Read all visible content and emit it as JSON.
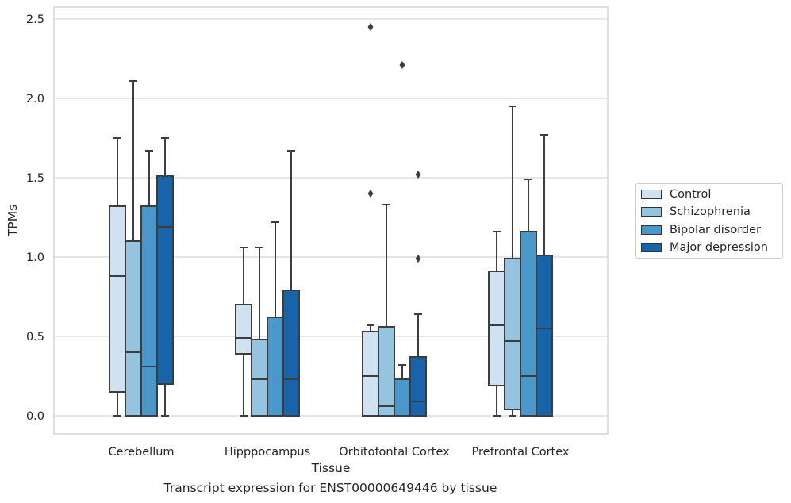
{
  "caption": "Transcript expression for ENST00000649446 by tissue",
  "legend": {
    "items": [
      {
        "label": "Control",
        "color": "#d0e1f2"
      },
      {
        "label": "Schizophrenia",
        "color": "#94c4df"
      },
      {
        "label": "Bipolar disorder",
        "color": "#4a98c9"
      },
      {
        "label": "Major depression",
        "color": "#1764ab"
      }
    ]
  },
  "chart_data": {
    "type": "box",
    "xlabel": "Tissue",
    "ylabel": "TPMs",
    "ylim": [
      -0.12,
      2.58
    ],
    "yticks": [
      0.0,
      0.5,
      1.0,
      1.5,
      2.0,
      2.5
    ],
    "ytick_labels": [
      "0.0",
      "0.5",
      "1.0",
      "1.5",
      "2.0",
      "2.5"
    ],
    "grid": true,
    "legend_position": "right",
    "categories": [
      "Cerebellum",
      "Hipppocampus",
      "Orbitofontal Cortex",
      "Prefrontal Cortex"
    ],
    "series": [
      {
        "name": "Control",
        "boxes": [
          {
            "whislo": 0.0,
            "q1": 0.15,
            "med": 0.88,
            "q3": 1.32,
            "whishi": 1.75,
            "fliers": []
          },
          {
            "whislo": 0.0,
            "q1": 0.39,
            "med": 0.49,
            "q3": 0.7,
            "whishi": 1.06,
            "fliers": []
          },
          {
            "whislo": 0.0,
            "q1": 0.0,
            "med": 0.25,
            "q3": 0.53,
            "whishi": 0.57,
            "fliers": [
              1.4,
              2.45
            ]
          },
          {
            "whislo": 0.0,
            "q1": 0.19,
            "med": 0.57,
            "q3": 0.91,
            "whishi": 1.16,
            "fliers": []
          }
        ]
      },
      {
        "name": "Schizophrenia",
        "boxes": [
          {
            "whislo": 0.0,
            "q1": 0.0,
            "med": 0.4,
            "q3": 1.1,
            "whishi": 2.11,
            "fliers": []
          },
          {
            "whislo": 0.0,
            "q1": 0.0,
            "med": 0.23,
            "q3": 0.48,
            "whishi": 1.06,
            "fliers": []
          },
          {
            "whislo": 0.0,
            "q1": 0.0,
            "med": 0.06,
            "q3": 0.56,
            "whishi": 1.33,
            "fliers": []
          },
          {
            "whislo": 0.0,
            "q1": 0.04,
            "med": 0.47,
            "q3": 0.99,
            "whishi": 1.95,
            "fliers": []
          }
        ]
      },
      {
        "name": "Bipolar disorder",
        "boxes": [
          {
            "whislo": 0.0,
            "q1": 0.0,
            "med": 0.31,
            "q3": 1.32,
            "whishi": 1.67,
            "fliers": []
          },
          {
            "whislo": 0.0,
            "q1": 0.0,
            "med": 0.0,
            "q3": 0.62,
            "whishi": 1.22,
            "fliers": []
          },
          {
            "whislo": 0.0,
            "q1": 0.0,
            "med": 0.0,
            "q3": 0.23,
            "whishi": 0.32,
            "fliers": [
              2.21
            ]
          },
          {
            "whislo": 0.0,
            "q1": 0.0,
            "med": 0.25,
            "q3": 1.16,
            "whishi": 1.49,
            "fliers": []
          }
        ]
      },
      {
        "name": "Major depression",
        "boxes": [
          {
            "whislo": 0.0,
            "q1": 0.2,
            "med": 1.19,
            "q3": 1.51,
            "whishi": 1.75,
            "fliers": []
          },
          {
            "whislo": 0.0,
            "q1": 0.0,
            "med": 0.23,
            "q3": 0.79,
            "whishi": 1.67,
            "fliers": []
          },
          {
            "whislo": 0.0,
            "q1": 0.0,
            "med": 0.09,
            "q3": 0.37,
            "whishi": 0.64,
            "fliers": [
              0.99,
              1.52
            ]
          },
          {
            "whislo": 0.0,
            "q1": 0.0,
            "med": 0.55,
            "q3": 1.01,
            "whishi": 1.77,
            "fliers": []
          }
        ]
      }
    ]
  }
}
